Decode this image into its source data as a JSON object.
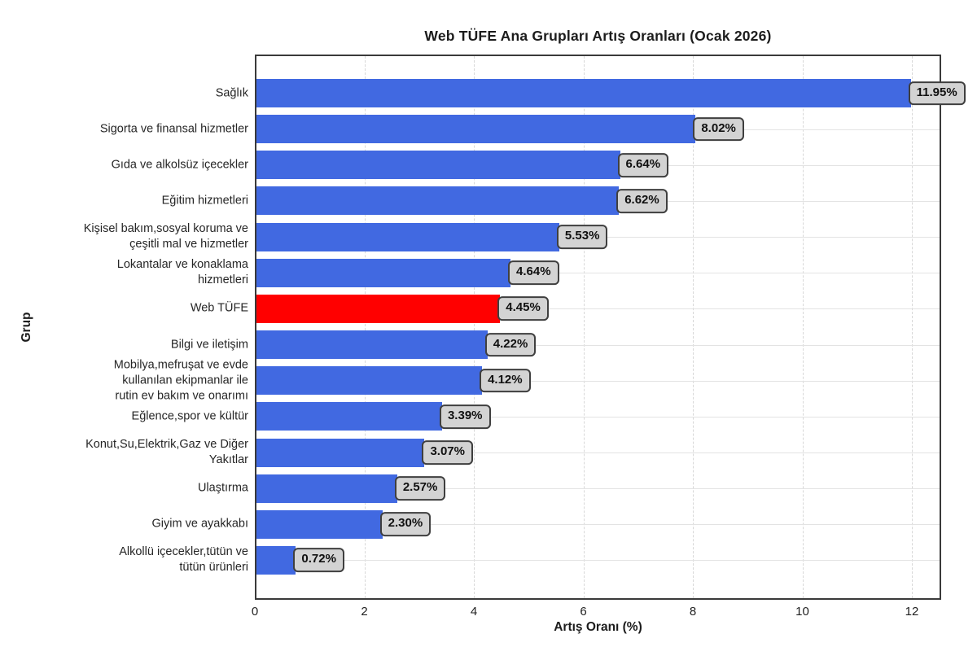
{
  "chart_data": {
    "type": "bar",
    "orientation": "horizontal",
    "title": "Web TÜFE Ana Grupları Artış Oranları (Ocak 2026)",
    "xlabel": "Artış Oranı (%)",
    "ylabel": "Grup",
    "xlim": [
      0,
      12.54
    ],
    "xticks": [
      0,
      2,
      4,
      6,
      8,
      10,
      12
    ],
    "grid": true,
    "legend": "none",
    "bar_color": "#4169E1",
    "highlight_color": "#FF0000",
    "highlight_index": 6,
    "value_box_fill": "#D3D3D3",
    "value_box_border": "#3F3F3F",
    "categories": [
      "Sağlık",
      "Sigorta ve finansal hizmetler",
      "Gıda ve alkolsüz içecekler",
      "Eğitim hizmetleri",
      "Kişisel bakım,sosyal koruma ve çeşitli mal ve hizmetler",
      "Lokantalar ve konaklama hizmetleri",
      "Web TÜFE",
      "Bilgi ve iletişim",
      "Mobilya,mefruşat ve evde kullanılan ekipmanlar ile rutin ev bakım ve onarımı",
      "Eğlence,spor ve kültür",
      "Konut,Su,Elektrik,Gaz ve Diğer Yakıtlar",
      "Ulaştırma",
      "Giyim ve ayakkabı",
      "Alkollü içecekler,tütün ve tütün ürünleri"
    ],
    "category_lines": [
      [
        "Sağlık"
      ],
      [
        "Sigorta ve finansal hizmetler"
      ],
      [
        "Gıda ve alkolsüz içecekler"
      ],
      [
        "Eğitim hizmetleri"
      ],
      [
        "Kişisel bakım,sosyal koruma ve",
        "çeşitli mal ve hizmetler"
      ],
      [
        "Lokantalar ve konaklama",
        "hizmetleri"
      ],
      [
        "Web TÜFE"
      ],
      [
        "Bilgi ve iletişim"
      ],
      [
        "Mobilya,mefruşat ve evde",
        "kullanılan ekipmanlar ile",
        "rutin ev bakım ve onarımı"
      ],
      [
        "Eğlence,spor ve kültür"
      ],
      [
        "Konut,Su,Elektrik,Gaz ve Diğer",
        "Yakıtlar"
      ],
      [
        "Ulaştırma"
      ],
      [
        "Giyim ve ayakkabı"
      ],
      [
        "Alkollü içecekler,tütün ve",
        "tütün ürünleri"
      ]
    ],
    "values": [
      11.95,
      8.02,
      6.64,
      6.62,
      5.53,
      4.64,
      4.45,
      4.22,
      4.12,
      3.39,
      3.07,
      2.57,
      2.3,
      0.72
    ],
    "value_labels": [
      "11.95%",
      "8.02%",
      "6.64%",
      "6.62%",
      "5.53%",
      "4.64%",
      "4.45%",
      "4.22%",
      "4.12%",
      "3.39%",
      "3.07%",
      "2.57%",
      "2.30%",
      "0.72%"
    ]
  }
}
